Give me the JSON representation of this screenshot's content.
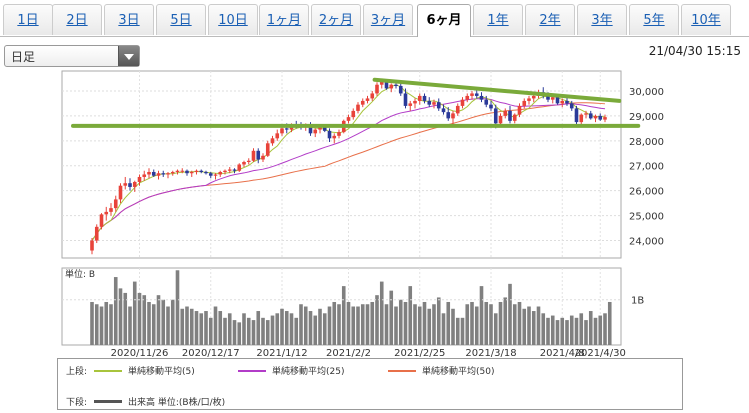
{
  "tabs": [
    "1日",
    "2日",
    "3日",
    "5日",
    "10日",
    "1ヶ月",
    "2ヶ月",
    "3ヶ月",
    "6ヶ月",
    "1年",
    "2年",
    "3年",
    "5年",
    "10年"
  ],
  "active_tab": "6ヶ月",
  "period_select": {
    "value": "日足"
  },
  "timestamp": "21/04/30 15:15",
  "colors": {
    "up": "#e8433a",
    "down": "#2b3a99",
    "ma5": "#a8c43c",
    "ma25": "#b23cc8",
    "ma50": "#e8704a",
    "trend": "#7aaa3a",
    "volume": "#808080"
  },
  "chart_data": {
    "type": "candlestick",
    "price_axis": {
      "ylim": [
        23300,
        30800
      ],
      "ticks": [
        "24,000",
        "25,000",
        "26,000",
        "27,000",
        "28,000",
        "29,000",
        "30,000"
      ]
    },
    "volume_axis": {
      "label": "単位: B",
      "tick": "1B",
      "ylim": [
        0,
        1.7
      ]
    },
    "x_labels": [
      "2020/11/26",
      "2020/12/17",
      "2021/1/12",
      "2021/2/2",
      "2021/2/25",
      "2021/3/18",
      "2021/4/8",
      "2021/4/30"
    ],
    "ohlc": [
      [
        23600,
        24100,
        23450,
        24000
      ],
      [
        24000,
        24650,
        23900,
        24550
      ],
      [
        24550,
        25100,
        24450,
        25050
      ],
      [
        25050,
        25350,
        24800,
        25150
      ],
      [
        25150,
        25500,
        25000,
        25300
      ],
      [
        25300,
        25800,
        25150,
        25650
      ],
      [
        25650,
        26300,
        25500,
        26200
      ],
      [
        26200,
        26550,
        26050,
        26300
      ],
      [
        26300,
        26500,
        26000,
        26150
      ],
      [
        26150,
        26400,
        25950,
        26350
      ],
      [
        26350,
        26650,
        26200,
        26550
      ],
      [
        26550,
        26800,
        26400,
        26650
      ],
      [
        26650,
        26900,
        26500,
        26750
      ],
      [
        26750,
        26850,
        26550,
        26600
      ],
      [
        26600,
        26800,
        26450,
        26700
      ],
      [
        26700,
        26800,
        26550,
        26650
      ],
      [
        26650,
        26750,
        26500,
        26700
      ],
      [
        26700,
        26800,
        26600,
        26750
      ],
      [
        26750,
        26850,
        26650,
        26800
      ],
      [
        26800,
        26900,
        26700,
        26800
      ],
      [
        26800,
        26850,
        26600,
        26700
      ],
      [
        26700,
        26800,
        26550,
        26750
      ],
      [
        26750,
        26850,
        26650,
        26800
      ],
      [
        26800,
        26850,
        26700,
        26750
      ],
      [
        26750,
        26800,
        26650,
        26700
      ],
      [
        26700,
        26750,
        26500,
        26600
      ],
      [
        26600,
        26700,
        26450,
        26650
      ],
      [
        26650,
        26800,
        26550,
        26750
      ],
      [
        26750,
        26850,
        26650,
        26800
      ],
      [
        26800,
        26950,
        26700,
        26850
      ],
      [
        26850,
        26900,
        26700,
        26800
      ],
      [
        26800,
        27100,
        26750,
        27050
      ],
      [
        27050,
        27200,
        26950,
        27150
      ],
      [
        27150,
        27300,
        27050,
        27200
      ],
      [
        27200,
        27700,
        27150,
        27600
      ],
      [
        27600,
        27700,
        27100,
        27250
      ],
      [
        27250,
        27500,
        27150,
        27400
      ],
      [
        27400,
        28000,
        27350,
        27900
      ],
      [
        27900,
        28200,
        27800,
        28100
      ],
      [
        28100,
        28450,
        28000,
        28300
      ],
      [
        28300,
        28600,
        28200,
        28500
      ],
      [
        28500,
        28700,
        28300,
        28450
      ],
      [
        28450,
        28700,
        28350,
        28650
      ],
      [
        28650,
        28800,
        28500,
        28600
      ],
      [
        28600,
        28750,
        28450,
        28550
      ],
      [
        28550,
        28700,
        28400,
        28650
      ],
      [
        28650,
        28750,
        28200,
        28300
      ],
      [
        28300,
        28500,
        28150,
        28450
      ],
      [
        28450,
        28600,
        28300,
        28550
      ],
      [
        28550,
        28650,
        28350,
        28400
      ],
      [
        28400,
        28500,
        27950,
        28100
      ],
      [
        28100,
        28300,
        27900,
        28200
      ],
      [
        28200,
        28450,
        28100,
        28350
      ],
      [
        28350,
        28850,
        28300,
        28800
      ],
      [
        28800,
        29050,
        28700,
        28950
      ],
      [
        28950,
        29300,
        28850,
        29200
      ],
      [
        29200,
        29550,
        29100,
        29450
      ],
      [
        29450,
        29700,
        29350,
        29600
      ],
      [
        29600,
        29800,
        29500,
        29700
      ],
      [
        29700,
        30000,
        29600,
        29900
      ],
      [
        29900,
        30350,
        29800,
        30250
      ],
      [
        30250,
        30500,
        30100,
        30400
      ],
      [
        30400,
        30450,
        30050,
        30100
      ],
      [
        30100,
        30300,
        29950,
        30250
      ],
      [
        30250,
        30400,
        30100,
        30200
      ],
      [
        30200,
        30350,
        29800,
        29900
      ],
      [
        29900,
        30100,
        29300,
        29400
      ],
      [
        29400,
        29600,
        29200,
        29500
      ],
      [
        29500,
        29700,
        29300,
        29600
      ],
      [
        29600,
        29900,
        29450,
        29800
      ],
      [
        29800,
        29900,
        29500,
        29600
      ],
      [
        29600,
        29750,
        29350,
        29450
      ],
      [
        29450,
        29650,
        29300,
        29550
      ],
      [
        29550,
        29700,
        29200,
        29300
      ],
      [
        29300,
        29450,
        29050,
        29150
      ],
      [
        29150,
        29350,
        28800,
        28900
      ],
      [
        28900,
        29200,
        28650,
        29100
      ],
      [
        29100,
        29500,
        29000,
        29400
      ],
      [
        29400,
        29750,
        29300,
        29650
      ],
      [
        29650,
        29900,
        29550,
        29800
      ],
      [
        29800,
        30000,
        29650,
        29900
      ],
      [
        29900,
        30100,
        29700,
        29800
      ],
      [
        29800,
        29950,
        29550,
        29650
      ],
      [
        29650,
        29800,
        29350,
        29450
      ],
      [
        29450,
        29600,
        29200,
        29300
      ],
      [
        29300,
        29450,
        28500,
        28700
      ],
      [
        28700,
        29100,
        28550,
        29000
      ],
      [
        29000,
        29300,
        28900,
        29200
      ],
      [
        29200,
        29400,
        28700,
        28800
      ],
      [
        28800,
        29100,
        28700,
        29050
      ],
      [
        29050,
        29500,
        28950,
        29400
      ],
      [
        29400,
        29700,
        29300,
        29600
      ],
      [
        29600,
        29800,
        29450,
        29700
      ],
      [
        29700,
        29900,
        29550,
        29800
      ],
      [
        29800,
        30050,
        29700,
        29950
      ],
      [
        29950,
        30150,
        29700,
        29800
      ],
      [
        29800,
        29950,
        29550,
        29650
      ],
      [
        29650,
        29850,
        29500,
        29750
      ],
      [
        29750,
        29800,
        29450,
        29500
      ],
      [
        29500,
        29700,
        29350,
        29600
      ],
      [
        29600,
        29750,
        29400,
        29500
      ],
      [
        29500,
        29600,
        29200,
        29300
      ],
      [
        29300,
        29400,
        28600,
        28750
      ],
      [
        28750,
        29100,
        28650,
        29050
      ],
      [
        29050,
        29200,
        28900,
        29100
      ],
      [
        29100,
        29200,
        28850,
        28900
      ],
      [
        28900,
        29050,
        28750,
        29000
      ],
      [
        29000,
        29100,
        28800,
        28850
      ],
      [
        28850,
        29050,
        28750,
        28950
      ]
    ],
    "volume": [
      0.95,
      0.9,
      0.85,
      0.95,
      0.9,
      1.5,
      1.25,
      1.15,
      0.85,
      1.4,
      1.15,
      1.1,
      0.95,
      0.9,
      1.1,
      1.0,
      0.85,
      1.0,
      1.65,
      0.8,
      0.85,
      0.8,
      0.75,
      0.7,
      0.75,
      0.6,
      0.85,
      0.75,
      0.6,
      0.7,
      0.55,
      0.5,
      0.7,
      0.6,
      0.55,
      0.75,
      0.6,
      0.55,
      0.65,
      0.7,
      0.8,
      0.75,
      0.7,
      0.6,
      0.9,
      0.85,
      0.75,
      0.65,
      0.8,
      0.7,
      0.85,
      0.95,
      0.9,
      1.3,
      0.95,
      0.85,
      0.85,
      0.9,
      0.9,
      0.95,
      1.1,
      1.4,
      0.9,
      1.2,
      0.85,
      1.0,
      0.95,
      1.3,
      0.9,
      0.85,
      0.95,
      0.8,
      0.9,
      1.05,
      0.7,
      0.95,
      0.8,
      0.6,
      0.6,
      0.9,
      0.95,
      0.85,
      1.3,
      0.95,
      0.9,
      0.7,
      0.95,
      1.05,
      1.35,
      0.9,
      0.95,
      0.8,
      0.85,
      0.75,
      0.85,
      0.7,
      0.6,
      0.65,
      0.55,
      0.6,
      0.55,
      0.65,
      0.6,
      0.7,
      0.55,
      0.75,
      0.6,
      0.65,
      0.7,
      0.95
    ],
    "legend": {
      "upper_label": "上段:",
      "lower_label": "下段:",
      "series": [
        {
          "name": "単純移動平均(5)",
          "color": "#a8c43c"
        },
        {
          "name": "単純移動平均(25)",
          "color": "#b23cc8"
        },
        {
          "name": "単純移動平均(50)",
          "color": "#e8704a"
        }
      ],
      "volume_text": "出来高 単位:(B株/口/枚)"
    }
  }
}
